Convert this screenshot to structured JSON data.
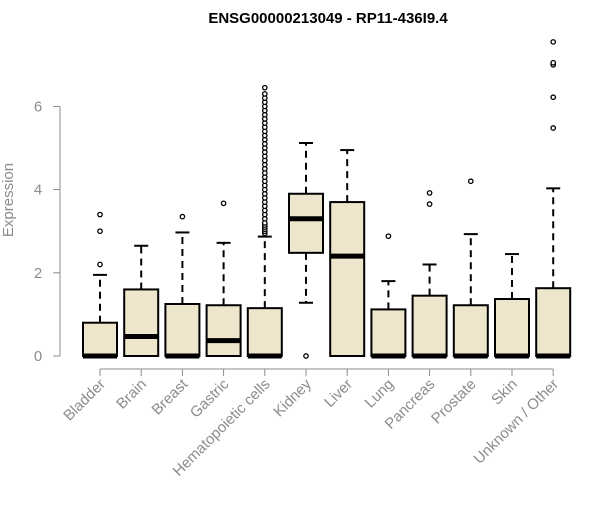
{
  "chart_data": {
    "type": "box",
    "title": "ENSG00000213049 - RP11-436I9.4",
    "xlabel": "",
    "ylabel": "Expression",
    "ylim": [
      0,
      7.5
    ],
    "yticks": [
      0,
      2,
      4,
      6
    ],
    "grid": false,
    "colors": {
      "box_fill": "#ede6cc",
      "box_stroke": "#000000",
      "axis": "#8c8c8c",
      "title": "#000000"
    },
    "categories": [
      "Bladder",
      "Brain",
      "Breast",
      "Gastric",
      "Hematopoietic cells",
      "Kidney",
      "Liver",
      "Lung",
      "Pancreas",
      "Prostate",
      "Skin",
      "Unknown / Other"
    ],
    "boxes": [
      {
        "category": "Bladder",
        "whisker_low": 0,
        "q1": 0,
        "median": 0,
        "q3": 0.8,
        "whisker_high": 1.95,
        "outliers": [
          2.2,
          3.0,
          3.4
        ]
      },
      {
        "category": "Brain",
        "whisker_low": 0,
        "q1": 0,
        "median": 0.47,
        "q3": 1.6,
        "whisker_high": 2.65,
        "outliers": []
      },
      {
        "category": "Breast",
        "whisker_low": 0,
        "q1": 0,
        "median": 0,
        "q3": 1.25,
        "whisker_high": 2.97,
        "outliers": [
          3.35
        ]
      },
      {
        "category": "Gastric",
        "whisker_low": 0,
        "q1": 0,
        "median": 0.37,
        "q3": 1.22,
        "whisker_high": 2.72,
        "outliers": [
          3.67
        ]
      },
      {
        "category": "Hematopoietic cells",
        "whisker_low": 0,
        "q1": 0,
        "median": 0,
        "q3": 1.15,
        "whisker_high": 2.87,
        "outliers": [
          2.95,
          3.0,
          3.05,
          3.1,
          3.15,
          3.2,
          3.3,
          3.4,
          3.5,
          3.6,
          3.7,
          3.8,
          3.9,
          4.0,
          4.1,
          4.2,
          4.3,
          4.4,
          4.5,
          4.6,
          4.7,
          4.8,
          4.9,
          5.0,
          5.1,
          5.2,
          5.3,
          5.4,
          5.5,
          5.6,
          5.7,
          5.8,
          5.9,
          6.0,
          6.1,
          6.2,
          6.3,
          6.45
        ]
      },
      {
        "category": "Kidney",
        "whisker_low": 1.28,
        "q1": 2.48,
        "median": 3.3,
        "q3": 3.9,
        "whisker_high": 5.12,
        "outliers": [
          0
        ]
      },
      {
        "category": "Liver",
        "whisker_low": 0,
        "q1": 0,
        "median": 2.4,
        "q3": 3.7,
        "whisker_high": 4.95,
        "outliers": []
      },
      {
        "category": "Lung",
        "whisker_low": 0,
        "q1": 0,
        "median": 0,
        "q3": 1.12,
        "whisker_high": 1.8,
        "outliers": [
          2.88
        ]
      },
      {
        "category": "Pancreas",
        "whisker_low": 0,
        "q1": 0,
        "median": 0,
        "q3": 1.45,
        "whisker_high": 2.2,
        "outliers": [
          3.65,
          3.92
        ]
      },
      {
        "category": "Prostate",
        "whisker_low": 0,
        "q1": 0,
        "median": 0,
        "q3": 1.22,
        "whisker_high": 2.93,
        "outliers": [
          4.2
        ]
      },
      {
        "category": "Skin",
        "whisker_low": 0,
        "q1": 0,
        "median": 0,
        "q3": 1.37,
        "whisker_high": 2.45,
        "outliers": []
      },
      {
        "category": "Unknown / Other",
        "whisker_low": 0,
        "q1": 0,
        "median": 0,
        "q3": 1.63,
        "whisker_high": 4.03,
        "outliers": [
          5.48,
          6.22,
          7.0,
          7.05,
          7.55
        ]
      }
    ]
  }
}
